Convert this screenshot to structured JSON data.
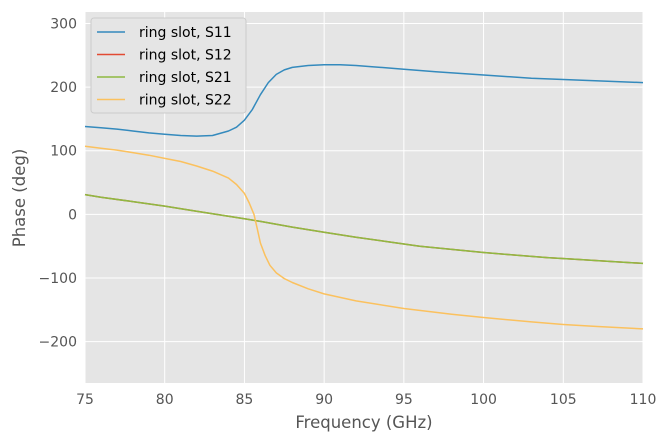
{
  "chart_data": {
    "type": "line",
    "xlabel": "Frequency (GHz)",
    "ylabel": "Phase (deg)",
    "xlim": [
      75,
      110
    ],
    "ylim": [
      -265,
      318
    ],
    "xticks": [
      75,
      80,
      85,
      90,
      95,
      100,
      105,
      110
    ],
    "yticks": [
      -200,
      -100,
      0,
      100,
      200,
      300
    ],
    "xtick_labels": [
      "75",
      "80",
      "85",
      "90",
      "95",
      "100",
      "105",
      "110"
    ],
    "ytick_labels": [
      "−200",
      "−100",
      "0",
      "100",
      "200",
      "300"
    ],
    "grid": true,
    "legend_position": "top-left",
    "series": [
      {
        "name": "ring slot, S11",
        "color": "#348abd",
        "x": [
          75,
          76,
          77,
          78,
          79,
          80,
          81,
          82,
          83,
          84,
          84.5,
          85,
          85.5,
          86,
          86.5,
          87,
          87.5,
          88,
          89,
          90,
          91,
          92,
          93,
          95,
          97,
          100,
          103,
          105,
          107,
          110
        ],
        "y": [
          138,
          136,
          134,
          131,
          128,
          126,
          124,
          123,
          124,
          131,
          137,
          148,
          165,
          188,
          207,
          220,
          227,
          231,
          234,
          235,
          235,
          234,
          232,
          228,
          224,
          219,
          214,
          212,
          210,
          207
        ]
      },
      {
        "name": "ring slot, S12",
        "color": "#e24a33",
        "x": [
          75,
          76,
          78,
          80,
          82,
          84,
          85,
          86,
          88,
          90,
          92,
          94,
          96,
          98,
          100,
          102,
          104,
          106,
          108,
          110
        ],
        "y": [
          31,
          27,
          20,
          13,
          5,
          -3,
          -7,
          -11,
          -20,
          -28,
          -36,
          -43,
          -50,
          -55,
          -60,
          -64,
          -68,
          -71,
          -74,
          -77
        ]
      },
      {
        "name": "ring slot, S21",
        "color": "#8eba42",
        "x": [
          75,
          76,
          78,
          80,
          82,
          84,
          85,
          86,
          88,
          90,
          92,
          94,
          96,
          98,
          100,
          102,
          104,
          106,
          108,
          110
        ],
        "y": [
          31,
          27,
          20,
          13,
          5,
          -3,
          -7,
          -11,
          -20,
          -28,
          -36,
          -43,
          -50,
          -55,
          -60,
          -64,
          -68,
          -71,
          -74,
          -77
        ]
      },
      {
        "name": "ring slot, S22",
        "color": "#fbc15e",
        "x": [
          75,
          76,
          77,
          78,
          79,
          80,
          81,
          82,
          83,
          84,
          84.5,
          85,
          85.3,
          85.6,
          85.8,
          86,
          86.3,
          86.6,
          87,
          87.5,
          88,
          89,
          90,
          92,
          95,
          98,
          100,
          103,
          105,
          107,
          110
        ],
        "y": [
          107,
          104,
          101,
          97,
          93,
          88,
          83,
          76,
          68,
          57,
          47,
          33,
          18,
          0,
          -22,
          -45,
          -65,
          -80,
          -92,
          -101,
          -107,
          -117,
          -125,
          -136,
          -148,
          -157,
          -162,
          -169,
          -173,
          -176,
          -180
        ]
      }
    ]
  }
}
